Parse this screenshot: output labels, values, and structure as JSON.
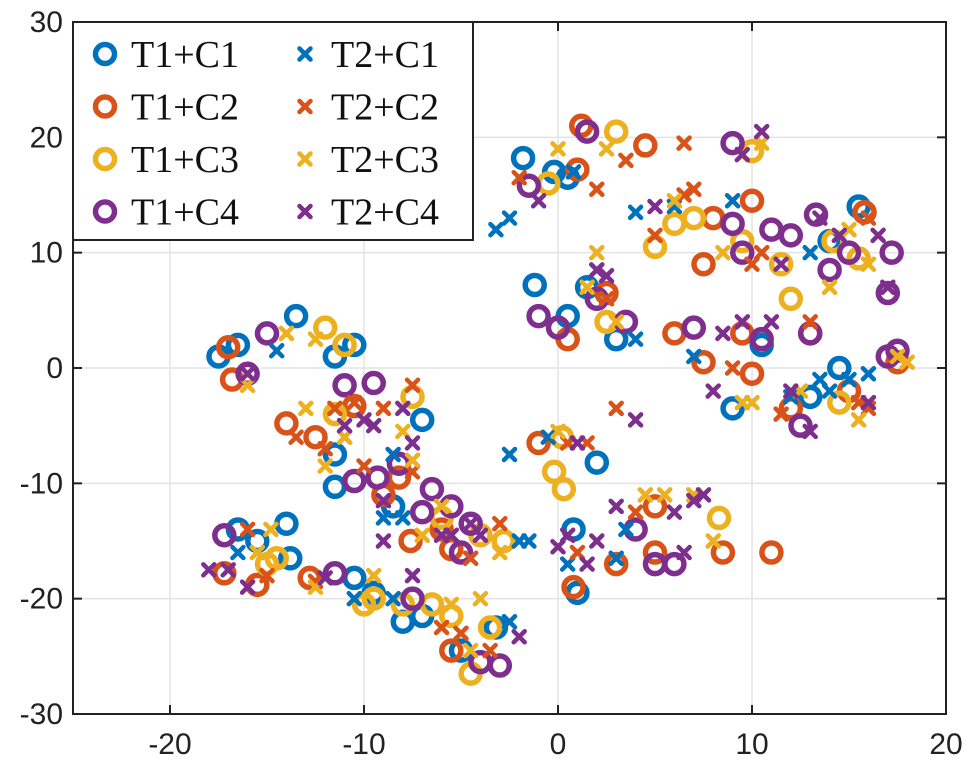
{
  "chart_data": {
    "type": "scatter",
    "xlim": [
      -25,
      20
    ],
    "ylim": [
      -30,
      30
    ],
    "xticks": [
      -20,
      -10,
      0,
      10,
      20
    ],
    "yticks": [
      -30,
      -20,
      -10,
      0,
      10,
      20,
      30
    ],
    "grid": true,
    "legend": "top-left",
    "colors": {
      "C1": "#0072BD",
      "C2": "#D95319",
      "C3": "#EDB120",
      "C4": "#7E2F8E"
    },
    "series": [
      {
        "name": "T1+C1",
        "marker": "circle",
        "color": "#0072BD",
        "points": [
          [
            -17.5,
            1
          ],
          [
            -16.5,
            2
          ],
          [
            -13.5,
            4.5
          ],
          [
            -11.5,
            1
          ],
          [
            -10.5,
            2
          ],
          [
            -1.8,
            18.2
          ],
          [
            -1.2,
            7.2
          ],
          [
            -0.2,
            17
          ],
          [
            0.5,
            16.5
          ],
          [
            0.5,
            4.5
          ],
          [
            1.5,
            7
          ],
          [
            3,
            2.5
          ],
          [
            9,
            -3.5
          ],
          [
            10.5,
            2
          ],
          [
            13,
            -2.5
          ],
          [
            14.5,
            0
          ],
          [
            15.5,
            14
          ],
          [
            -16.5,
            -14
          ],
          [
            -15.5,
            -15
          ],
          [
            -14,
            -13.5
          ],
          [
            -13.8,
            -16.5
          ],
          [
            -10.5,
            -18.2
          ],
          [
            -9.5,
            -19.5
          ],
          [
            -8,
            -22
          ],
          [
            -7,
            -21.5
          ],
          [
            -5,
            -24.5
          ],
          [
            -7,
            -4.5
          ],
          [
            -11.5,
            -10.3
          ],
          [
            -8.5,
            -12
          ],
          [
            0.8,
            -14
          ],
          [
            1,
            -19.5
          ],
          [
            2,
            -8.2
          ],
          [
            -11.5,
            -7.5
          ],
          [
            -3.2,
            -22.5
          ],
          [
            14,
            11
          ]
        ]
      },
      {
        "name": "T1+C2",
        "marker": "circle",
        "color": "#D95319",
        "points": [
          [
            -17,
            1.8
          ],
          [
            -16.8,
            -1
          ],
          [
            -14,
            -4.8
          ],
          [
            -12.5,
            -6
          ],
          [
            -10.5,
            -3.3
          ],
          [
            -8.2,
            -9.5
          ],
          [
            -7.6,
            -15
          ],
          [
            -6,
            -14
          ],
          [
            -5.5,
            -24.5
          ],
          [
            0.5,
            2.5
          ],
          [
            0.8,
            -19
          ],
          [
            1.2,
            21
          ],
          [
            1,
            17.2
          ],
          [
            2.5,
            6.5
          ],
          [
            4.5,
            19.3
          ],
          [
            6,
            3
          ],
          [
            7.5,
            0.5
          ],
          [
            8,
            13
          ],
          [
            8.5,
            -16
          ],
          [
            9.5,
            3
          ],
          [
            10,
            -0.5
          ],
          [
            10,
            14.5
          ],
          [
            12,
            -3.5
          ],
          [
            13,
            3
          ],
          [
            15,
            -2
          ],
          [
            15.8,
            13.5
          ],
          [
            17.5,
            0.5
          ],
          [
            -15.5,
            -18.8
          ],
          [
            -12.8,
            -18.2
          ],
          [
            -9,
            -11
          ],
          [
            -5.5,
            -15.7
          ],
          [
            5,
            -16
          ],
          [
            3,
            -17
          ],
          [
            -17.2,
            -17.8
          ],
          [
            -1,
            -6.5
          ],
          [
            11,
            -16
          ],
          [
            7.5,
            9
          ],
          [
            5,
            -12
          ]
        ]
      },
      {
        "name": "T1+C3",
        "marker": "circle",
        "color": "#EDB120",
        "points": [
          [
            -12,
            3.5
          ],
          [
            -11,
            2
          ],
          [
            -15,
            -17
          ],
          [
            -14.5,
            -16.5
          ],
          [
            -10,
            -20.5
          ],
          [
            -9.5,
            -20
          ],
          [
            -8,
            -20.5
          ],
          [
            -6.5,
            -20.5
          ],
          [
            -5.5,
            -21.5
          ],
          [
            -4.5,
            -26.5
          ],
          [
            -3.5,
            -22.5
          ],
          [
            -2.8,
            -15
          ],
          [
            -7.5,
            -2.5
          ],
          [
            -11.5,
            -4
          ],
          [
            -0.2,
            -9
          ],
          [
            0.3,
            -10.5
          ],
          [
            3,
            20.5
          ],
          [
            5,
            10.5
          ],
          [
            7,
            13
          ],
          [
            9.5,
            11
          ],
          [
            10,
            18.8
          ],
          [
            12,
            6
          ],
          [
            14.5,
            -3
          ],
          [
            14.2,
            11
          ],
          [
            15.5,
            9.5
          ],
          [
            -0.5,
            16
          ],
          [
            0.2,
            -6
          ],
          [
            8.3,
            -13
          ],
          [
            -4,
            -14.5
          ],
          [
            6,
            12.5
          ],
          [
            11.5,
            9
          ],
          [
            2.5,
            4
          ],
          [
            -6,
            -13
          ]
        ]
      },
      {
        "name": "T1+C4",
        "marker": "circle",
        "color": "#7E2F8E",
        "points": [
          [
            -17.2,
            -14.5
          ],
          [
            -16,
            -0.5
          ],
          [
            -15,
            3
          ],
          [
            -11.5,
            -17.8
          ],
          [
            -11,
            -1.5
          ],
          [
            -9.5,
            -1.3
          ],
          [
            -9.3,
            -9.5
          ],
          [
            -8.2,
            -8.3
          ],
          [
            -7,
            -12.5
          ],
          [
            -6.5,
            -10.5
          ],
          [
            -5.5,
            -12
          ],
          [
            -5,
            -16
          ],
          [
            -4.5,
            -13.5
          ],
          [
            -4,
            -25.5
          ],
          [
            -3,
            -25.8
          ],
          [
            -7.5,
            -20
          ],
          [
            -1.5,
            15.8
          ],
          [
            -1,
            4.5
          ],
          [
            0,
            3.5
          ],
          [
            1.5,
            20.5
          ],
          [
            2,
            6
          ],
          [
            3.5,
            4
          ],
          [
            4,
            -14
          ],
          [
            5,
            -17
          ],
          [
            6,
            -17
          ],
          [
            7,
            3.5
          ],
          [
            9,
            19.5
          ],
          [
            9,
            12.5
          ],
          [
            9.5,
            10
          ],
          [
            10.5,
            2.5
          ],
          [
            11,
            12
          ],
          [
            12,
            11.5
          ],
          [
            12.5,
            -5
          ],
          [
            13,
            3
          ],
          [
            13.3,
            13.3
          ],
          [
            14,
            8.5
          ],
          [
            15,
            10
          ],
          [
            17,
            6.5
          ],
          [
            17.2,
            10
          ],
          [
            17,
            1
          ],
          [
            17.5,
            1.5
          ],
          [
            -10.5,
            -9.8
          ]
        ]
      },
      {
        "name": "T2+C1",
        "marker": "x",
        "color": "#0072BD",
        "points": [
          [
            -14.5,
            1.5
          ],
          [
            -8.5,
            -7.5
          ],
          [
            -8,
            -13
          ],
          [
            -2.5,
            -7.5
          ],
          [
            -2,
            -15
          ],
          [
            -1.5,
            -15
          ],
          [
            -0.5,
            -6
          ],
          [
            0.5,
            -17
          ],
          [
            3,
            -16.5
          ],
          [
            4,
            2.5
          ],
          [
            6,
            14
          ],
          [
            7,
            1
          ],
          [
            9,
            14.5
          ],
          [
            12,
            -2.5
          ],
          [
            13,
            10
          ],
          [
            13.5,
            -1
          ],
          [
            14,
            -2
          ],
          [
            15,
            -1
          ],
          [
            16,
            -0.5
          ],
          [
            -16.5,
            -16
          ],
          [
            -10.5,
            -20
          ],
          [
            -8.5,
            -20
          ],
          [
            -2.5,
            -22
          ],
          [
            -2.5,
            13
          ],
          [
            -3.2,
            12
          ],
          [
            0.8,
            17
          ],
          [
            2,
            8.5
          ],
          [
            4,
            13.5
          ],
          [
            -11,
            -6
          ],
          [
            3.5,
            -14
          ],
          [
            -9,
            -13
          ]
        ]
      },
      {
        "name": "T2+C2",
        "marker": "x",
        "color": "#D95319",
        "points": [
          [
            -16,
            -14
          ],
          [
            -13.5,
            -6
          ],
          [
            -12.5,
            -18.5
          ],
          [
            -12,
            -7
          ],
          [
            -11.5,
            -3.5
          ],
          [
            -10.5,
            -3
          ],
          [
            -10,
            -8.5
          ],
          [
            -9,
            -3.5
          ],
          [
            -7.5,
            -1.5
          ],
          [
            -7.5,
            -9
          ],
          [
            -5,
            -23
          ],
          [
            -3,
            -13.5
          ],
          [
            0.5,
            -6.5
          ],
          [
            1,
            -16
          ],
          [
            1.5,
            -6.5
          ],
          [
            2,
            15.5
          ],
          [
            2.5,
            6
          ],
          [
            3.5,
            18
          ],
          [
            5,
            11.5
          ],
          [
            6.5,
            19.5
          ],
          [
            6.5,
            15
          ],
          [
            7,
            15.5
          ],
          [
            9,
            0
          ],
          [
            10.5,
            10
          ],
          [
            10,
            9
          ],
          [
            11.5,
            -4
          ],
          [
            13,
            4
          ],
          [
            15.5,
            -3
          ],
          [
            16,
            13
          ],
          [
            16,
            -3.5
          ],
          [
            -2,
            16.5
          ],
          [
            -4.5,
            -16.5
          ],
          [
            -15,
            -18
          ],
          [
            -3.5,
            -24.5
          ],
          [
            3,
            -3.5
          ],
          [
            4,
            -12.5
          ],
          [
            -6,
            -22.5
          ]
        ]
      },
      {
        "name": "T2+C3",
        "marker": "x",
        "color": "#EDB120",
        "points": [
          [
            -16,
            -1.5
          ],
          [
            -14,
            3
          ],
          [
            -13,
            -3.5
          ],
          [
            -12,
            -8.5
          ],
          [
            -12.5,
            -19
          ],
          [
            -11,
            -6
          ],
          [
            -8,
            -5.5
          ],
          [
            -7.5,
            -8
          ],
          [
            -7,
            -14.5
          ],
          [
            -6,
            -12
          ],
          [
            -5.5,
            -20.5
          ],
          [
            -4.5,
            -24.5
          ],
          [
            -4,
            -20
          ],
          [
            -3,
            -16
          ],
          [
            0,
            -5.5
          ],
          [
            0,
            19
          ],
          [
            1.5,
            7
          ],
          [
            2.5,
            19
          ],
          [
            4.5,
            -11
          ],
          [
            5.5,
            -11
          ],
          [
            6,
            14.5
          ],
          [
            8,
            -15
          ],
          [
            8.5,
            10
          ],
          [
            9.5,
            -3
          ],
          [
            10,
            -3
          ],
          [
            10.5,
            19.5
          ],
          [
            12.5,
            -2
          ],
          [
            14,
            7
          ],
          [
            15,
            12
          ],
          [
            15.5,
            -4.5
          ],
          [
            16,
            9
          ],
          [
            17.5,
            1
          ],
          [
            18,
            0.5
          ],
          [
            -15.5,
            -16
          ],
          [
            -14.8,
            -14
          ],
          [
            -9.5,
            -18
          ],
          [
            2,
            10
          ],
          [
            3,
            4
          ],
          [
            7,
            -11
          ],
          [
            -12.5,
            2.5
          ]
        ]
      },
      {
        "name": "T2+C4",
        "marker": "x",
        "color": "#7E2F8E",
        "points": [
          [
            -18,
            -17.5
          ],
          [
            -17,
            -17.5
          ],
          [
            -16,
            -19
          ],
          [
            -12,
            -18.2
          ],
          [
            -11,
            -5
          ],
          [
            -10,
            -4.5
          ],
          [
            -9.5,
            -5
          ],
          [
            -9,
            -15
          ],
          [
            -8,
            -3.5
          ],
          [
            -7.5,
            -6.5
          ],
          [
            -7.5,
            -18
          ],
          [
            -6,
            -14.5
          ],
          [
            -5.5,
            -14.5
          ],
          [
            -4.5,
            -13.5
          ],
          [
            -4,
            -14.5
          ],
          [
            -2,
            -23.3
          ],
          [
            -1,
            14.5
          ],
          [
            0.5,
            -14.5
          ],
          [
            1,
            -6.5
          ],
          [
            1.5,
            -17
          ],
          [
            2,
            -15
          ],
          [
            2.5,
            8
          ],
          [
            4,
            -4.5
          ],
          [
            5,
            14
          ],
          [
            6,
            -12.5
          ],
          [
            6.5,
            -16
          ],
          [
            7,
            -11.5
          ],
          [
            7.5,
            -11
          ],
          [
            8,
            -2
          ],
          [
            8.5,
            3
          ],
          [
            9.5,
            18.5
          ],
          [
            10.5,
            20.5
          ],
          [
            11,
            4
          ],
          [
            11.5,
            9
          ],
          [
            12,
            -2
          ],
          [
            13,
            -5.5
          ],
          [
            13.5,
            13
          ],
          [
            14.5,
            11.5
          ],
          [
            16,
            -3
          ],
          [
            16.5,
            11.5
          ],
          [
            17,
            7
          ],
          [
            -16,
            -0.5
          ],
          [
            -9,
            -11.5
          ],
          [
            2,
            8.5
          ],
          [
            9.5,
            4
          ],
          [
            0,
            -15.5
          ],
          [
            3,
            -12
          ]
        ]
      }
    ]
  }
}
